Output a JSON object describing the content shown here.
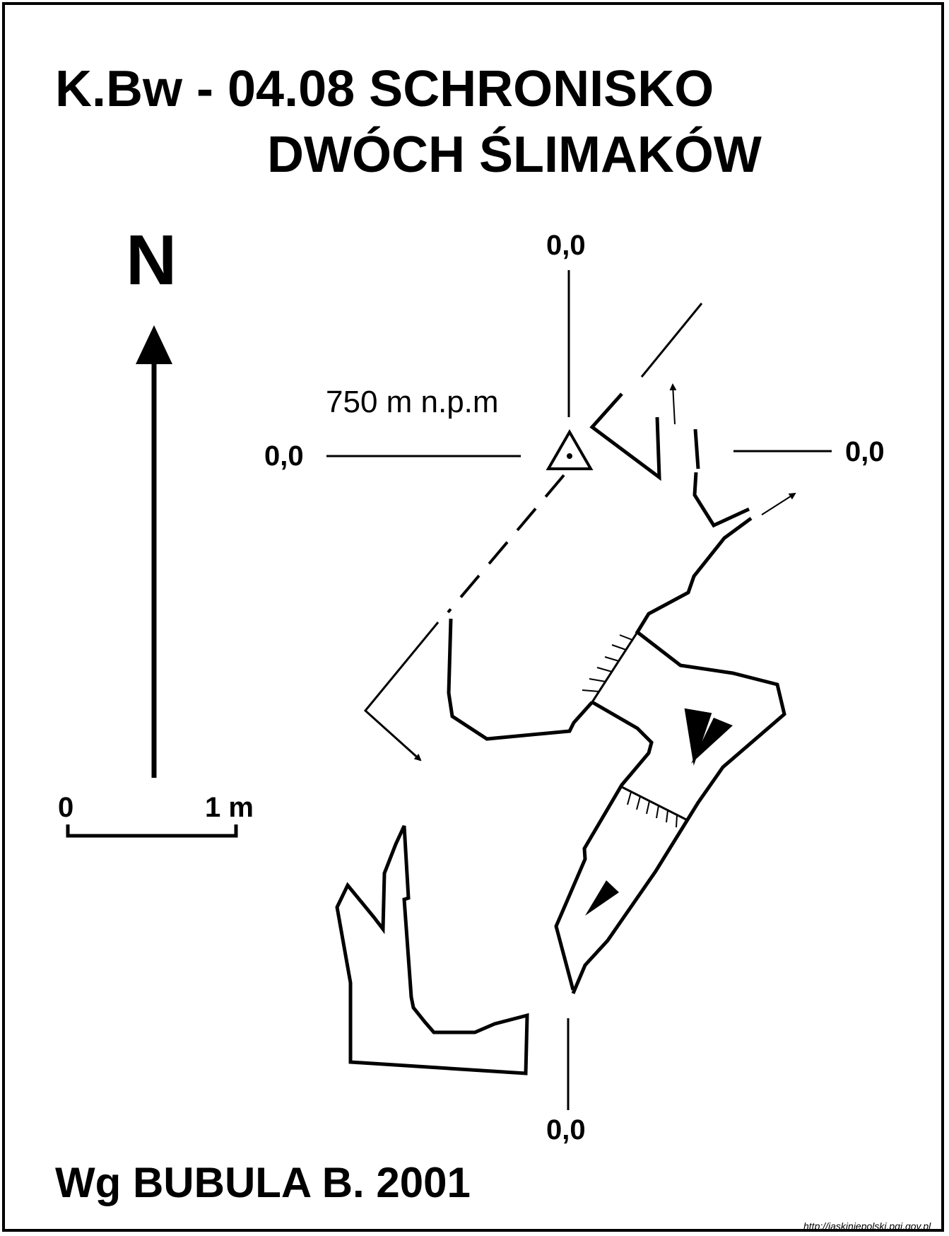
{
  "title": {
    "line1": "K.Bw - 04.08  SCHRONISKO",
    "line2": "DWÓCH ŚLIMAKÓW"
  },
  "north_label": "N",
  "altitude": "750 m n.p.m",
  "datum": {
    "top": "0,0",
    "left": "0,0",
    "right": "0,0",
    "bottom": "0,0"
  },
  "scale": {
    "start": "0",
    "end": "1 m"
  },
  "author": "Wg BUBULA B. 2001",
  "source": "http://jaskiniepolski.pgi.gov.pl"
}
